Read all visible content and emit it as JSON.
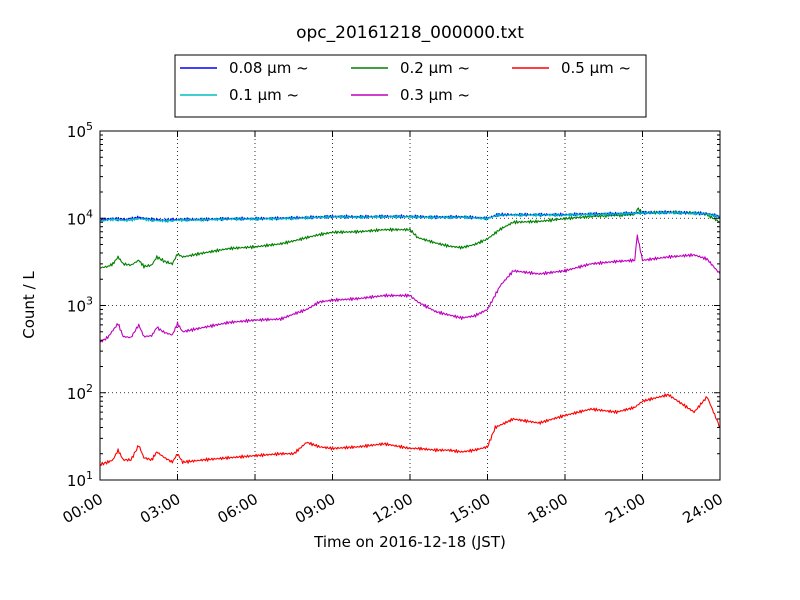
{
  "chart_data": {
    "type": "line",
    "title": "opc_20161218_000000.txt",
    "xlabel": "Time on 2016-12-18 (JST)",
    "ylabel": "Count / L",
    "xscale": "time",
    "x_ticks": [
      "00:00",
      "03:00",
      "06:00",
      "09:00",
      "12:00",
      "15:00",
      "18:00",
      "21:00",
      "24:00"
    ],
    "xlim": [
      "2016-12-18 00:00",
      "2016-12-19 00:00"
    ],
    "yscale": "log",
    "ylim": [
      10,
      100000
    ],
    "y_ticks": [
      {
        "base": "10",
        "exp": "1"
      },
      {
        "base": "10",
        "exp": "2"
      },
      {
        "base": "10",
        "exp": "3"
      },
      {
        "base": "10",
        "exp": "4"
      },
      {
        "base": "10",
        "exp": "5"
      }
    ],
    "grid": true,
    "legend_position": "top-center",
    "series": [
      {
        "name": "0.08 μm ~",
        "color": "#0000ff",
        "points": [
          [
            0,
            9600
          ],
          [
            0.5,
            9900
          ],
          [
            1,
            9700
          ],
          [
            1.5,
            10200
          ],
          [
            2,
            9700
          ],
          [
            2.5,
            9500
          ],
          [
            3,
            9700
          ],
          [
            4,
            9700
          ],
          [
            5,
            9900
          ],
          [
            6,
            9900
          ],
          [
            7,
            10000
          ],
          [
            8,
            10200
          ],
          [
            9,
            10500
          ],
          [
            10,
            10400
          ],
          [
            11,
            10500
          ],
          [
            12,
            10500
          ],
          [
            13,
            10300
          ],
          [
            14,
            10400
          ],
          [
            15,
            10000
          ],
          [
            15.4,
            11000
          ],
          [
            16,
            11000
          ],
          [
            17,
            11000
          ],
          [
            18,
            11000
          ],
          [
            19,
            11200
          ],
          [
            20,
            11300
          ],
          [
            20.7,
            11500
          ],
          [
            21,
            11600
          ],
          [
            22,
            11700
          ],
          [
            23,
            11500
          ],
          [
            23.5,
            11300
          ],
          [
            24,
            10500
          ]
        ]
      },
      {
        "name": "0.1 μm ~",
        "color": "#00bfbf",
        "points": [
          [
            0,
            9300
          ],
          [
            0.5,
            9700
          ],
          [
            1,
            9400
          ],
          [
            1.5,
            9900
          ],
          [
            2,
            9500
          ],
          [
            2.5,
            9300
          ],
          [
            3,
            9500
          ],
          [
            4,
            9600
          ],
          [
            5,
            9800
          ],
          [
            6,
            9800
          ],
          [
            7,
            9900
          ],
          [
            8,
            10100
          ],
          [
            9,
            10400
          ],
          [
            10,
            10300
          ],
          [
            11,
            10400
          ],
          [
            12,
            10400
          ],
          [
            13,
            10200
          ],
          [
            14,
            10300
          ],
          [
            15,
            9900
          ],
          [
            15.4,
            10900
          ],
          [
            16,
            10900
          ],
          [
            17,
            10900
          ],
          [
            18,
            10900
          ],
          [
            19,
            11100
          ],
          [
            20,
            11200
          ],
          [
            20.7,
            11400
          ],
          [
            21,
            11500
          ],
          [
            22,
            11600
          ],
          [
            23,
            11400
          ],
          [
            23.5,
            11200
          ],
          [
            24,
            10400
          ]
        ]
      },
      {
        "name": "0.2 μm ~",
        "color": "#008000",
        "points": [
          [
            0,
            2700
          ],
          [
            0.3,
            2800
          ],
          [
            0.5,
            3000
          ],
          [
            0.7,
            3600
          ],
          [
            0.9,
            3000
          ],
          [
            1.2,
            2900
          ],
          [
            1.5,
            3300
          ],
          [
            1.7,
            2800
          ],
          [
            2,
            2900
          ],
          [
            2.2,
            3600
          ],
          [
            2.5,
            3200
          ],
          [
            2.8,
            3000
          ],
          [
            3,
            3900
          ],
          [
            3.2,
            3600
          ],
          [
            4,
            4000
          ],
          [
            5,
            4500
          ],
          [
            6,
            4700
          ],
          [
            7,
            5100
          ],
          [
            7.5,
            5500
          ],
          [
            8,
            6000
          ],
          [
            8.5,
            6500
          ],
          [
            9,
            6900
          ],
          [
            10,
            7000
          ],
          [
            11,
            7400
          ],
          [
            12,
            7400
          ],
          [
            12.3,
            6000
          ],
          [
            13,
            5200
          ],
          [
            13.5,
            4800
          ],
          [
            14,
            4600
          ],
          [
            14.5,
            5000
          ],
          [
            15,
            5800
          ],
          [
            15.5,
            7500
          ],
          [
            16,
            9000
          ],
          [
            17,
            9200
          ],
          [
            18,
            9900
          ],
          [
            19,
            10500
          ],
          [
            20,
            10800
          ],
          [
            20.7,
            11000
          ],
          [
            20.8,
            13000
          ],
          [
            21,
            11500
          ],
          [
            22,
            11800
          ],
          [
            23,
            11500
          ],
          [
            23.5,
            11000
          ],
          [
            24,
            9000
          ]
        ]
      },
      {
        "name": "0.3 μm ~",
        "color": "#bf00bf",
        "points": [
          [
            0,
            380
          ],
          [
            0.3,
            430
          ],
          [
            0.5,
            520
          ],
          [
            0.7,
            620
          ],
          [
            0.9,
            440
          ],
          [
            1.2,
            430
          ],
          [
            1.5,
            600
          ],
          [
            1.7,
            440
          ],
          [
            2,
            450
          ],
          [
            2.2,
            560
          ],
          [
            2.5,
            490
          ],
          [
            2.8,
            460
          ],
          [
            3,
            620
          ],
          [
            3.2,
            500
          ],
          [
            4,
            560
          ],
          [
            5,
            640
          ],
          [
            6,
            680
          ],
          [
            7,
            700
          ],
          [
            7.5,
            800
          ],
          [
            8,
            900
          ],
          [
            8.5,
            1100
          ],
          [
            9,
            1150
          ],
          [
            10,
            1200
          ],
          [
            11,
            1300
          ],
          [
            12,
            1300
          ],
          [
            12.3,
            1100
          ],
          [
            13,
            850
          ],
          [
            13.5,
            780
          ],
          [
            14,
            720
          ],
          [
            14.5,
            760
          ],
          [
            15,
            900
          ],
          [
            15.5,
            1700
          ],
          [
            16,
            2500
          ],
          [
            17,
            2300
          ],
          [
            18,
            2500
          ],
          [
            19,
            3000
          ],
          [
            20,
            3200
          ],
          [
            20.7,
            3300
          ],
          [
            20.8,
            6300
          ],
          [
            21,
            3300
          ],
          [
            22,
            3600
          ],
          [
            23,
            3800
          ],
          [
            23.5,
            3400
          ],
          [
            24,
            2300
          ]
        ]
      },
      {
        "name": "0.5 μm ~",
        "color": "#ff0000",
        "points": [
          [
            0,
            15
          ],
          [
            0.3,
            16
          ],
          [
            0.5,
            17
          ],
          [
            0.7,
            22
          ],
          [
            0.9,
            17
          ],
          [
            1.2,
            17
          ],
          [
            1.5,
            25
          ],
          [
            1.7,
            18
          ],
          [
            2,
            17
          ],
          [
            2.2,
            21
          ],
          [
            2.5,
            18
          ],
          [
            2.8,
            16
          ],
          [
            3,
            20
          ],
          [
            3.2,
            16
          ],
          [
            4,
            17
          ],
          [
            5,
            18
          ],
          [
            6,
            19
          ],
          [
            7,
            20
          ],
          [
            7.5,
            20
          ],
          [
            8,
            27
          ],
          [
            8.5,
            24
          ],
          [
            9,
            23
          ],
          [
            10,
            24
          ],
          [
            11,
            26
          ],
          [
            12,
            23
          ],
          [
            12.3,
            23
          ],
          [
            13,
            22
          ],
          [
            13.5,
            22
          ],
          [
            14,
            21
          ],
          [
            14.5,
            22
          ],
          [
            15,
            24
          ],
          [
            15.3,
            40
          ],
          [
            16,
            50
          ],
          [
            17,
            45
          ],
          [
            18,
            55
          ],
          [
            19,
            65
          ],
          [
            20,
            60
          ],
          [
            20.7,
            68
          ],
          [
            21,
            80
          ],
          [
            22,
            95
          ],
          [
            23,
            60
          ],
          [
            23.5,
            90
          ],
          [
            24,
            40
          ]
        ]
      }
    ]
  }
}
